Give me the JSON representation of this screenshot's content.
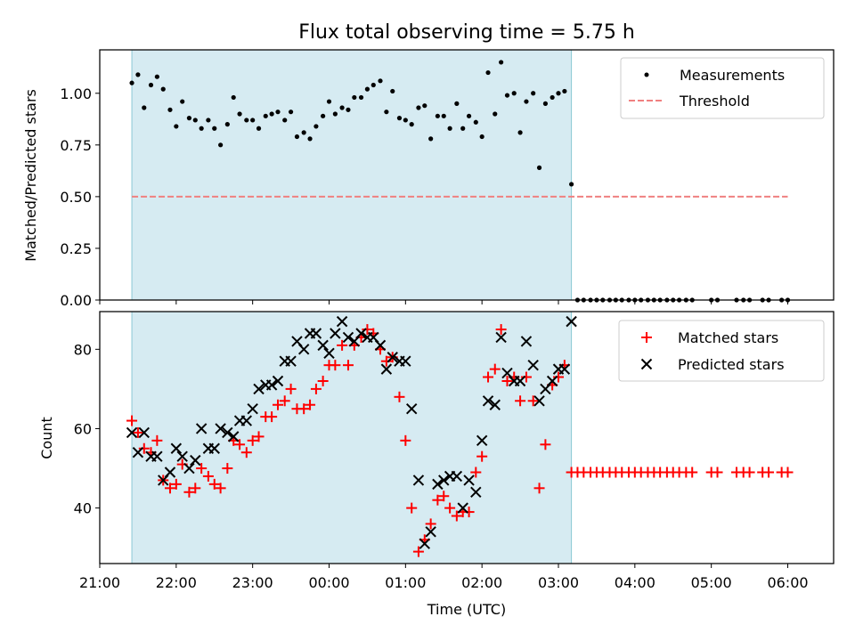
{
  "chart_data": [
    {
      "type": "scatter",
      "title": "Flux total observing time = 5.75 h",
      "ylabel": "Matched/Predicted stars",
      "xlabel": "",
      "xlim_hours": [
        21.0,
        30.6
      ],
      "ylim": [
        0,
        1.21
      ],
      "yticks": [
        0.0,
        0.25,
        0.5,
        0.75,
        1.0
      ],
      "ytick_labels": [
        "0.00",
        "0.25",
        "0.50",
        "0.75",
        "1.00"
      ],
      "shaded_span_hours": [
        21.42,
        27.17
      ],
      "threshold": {
        "name": "Threshold",
        "value": 0.5,
        "x_range_hours": [
          21.42,
          30.0
        ],
        "color": "#f08080"
      },
      "legend": [
        {
          "label": "Measurements",
          "marker": "dot"
        },
        {
          "label": "Threshold",
          "marker": "dashed-line"
        }
      ],
      "series": [
        {
          "name": "Measurements",
          "color": "#000000",
          "x_hours": [
            21.42,
            21.5,
            21.58,
            21.67,
            21.75,
            21.83,
            21.92,
            22.0,
            22.08,
            22.17,
            22.25,
            22.33,
            22.42,
            22.5,
            22.58,
            22.67,
            22.75,
            22.83,
            22.92,
            23.0,
            23.08,
            23.17,
            23.25,
            23.33,
            23.42,
            23.5,
            23.58,
            23.67,
            23.75,
            23.83,
            23.92,
            24.0,
            24.08,
            24.17,
            24.25,
            24.33,
            24.42,
            24.5,
            24.58,
            24.67,
            24.75,
            24.83,
            24.92,
            25.0,
            25.08,
            25.17,
            25.25,
            25.33,
            25.42,
            25.5,
            25.58,
            25.67,
            25.75,
            25.83,
            25.92,
            26.0,
            26.08,
            26.17,
            26.25,
            26.33,
            26.42,
            26.5,
            26.58,
            26.67,
            26.75,
            26.83,
            26.92,
            27.0,
            27.08,
            27.17,
            27.25,
            27.33,
            27.42,
            27.5,
            27.58,
            27.67,
            27.75,
            27.83,
            27.92,
            28.0,
            28.08,
            28.17,
            28.25,
            28.33,
            28.42,
            28.5,
            28.58,
            28.67,
            28.75,
            29.0,
            29.08,
            29.33,
            29.42,
            29.5,
            29.67,
            29.75,
            29.92,
            30.0
          ],
          "values": [
            1.05,
            1.09,
            0.93,
            1.04,
            1.08,
            1.02,
            0.92,
            0.84,
            0.96,
            0.88,
            0.87,
            0.83,
            0.87,
            0.83,
            0.75,
            0.85,
            0.98,
            0.9,
            0.87,
            0.87,
            0.83,
            0.89,
            0.9,
            0.91,
            0.87,
            0.91,
            0.79,
            0.81,
            0.78,
            0.84,
            0.89,
            0.96,
            0.9,
            0.93,
            0.92,
            0.98,
            0.98,
            1.02,
            1.04,
            1.06,
            0.91,
            1.01,
            0.88,
            0.87,
            0.85,
            0.93,
            0.94,
            0.78,
            0.89,
            0.89,
            0.83,
            0.95,
            0.83,
            0.89,
            0.86,
            0.79,
            1.1,
            0.9,
            1.15,
            0.99,
            1.0,
            0.81,
            0.96,
            1.0,
            0.64,
            0.95,
            0.98,
            1.0,
            1.01,
            0.56,
            0,
            0,
            0,
            0,
            0,
            0,
            0,
            0,
            0,
            0,
            0,
            0,
            0,
            0,
            0,
            0,
            0,
            0,
            0,
            0,
            0,
            0,
            0,
            0,
            0,
            0,
            0,
            0
          ]
        }
      ]
    },
    {
      "type": "scatter",
      "title": "",
      "xlabel": "Time (UTC)",
      "ylabel": "Count",
      "xlim_hours": [
        21.0,
        30.6
      ],
      "ylim": [
        26,
        89.5
      ],
      "yticks": [
        40,
        60,
        80
      ],
      "ytick_labels": [
        "40",
        "60",
        "80"
      ],
      "xticks_hours": [
        21,
        22,
        23,
        24,
        25,
        26,
        27,
        28,
        29,
        30
      ],
      "xtick_labels": [
        "21:00",
        "22:00",
        "23:00",
        "00:00",
        "01:00",
        "02:00",
        "03:00",
        "04:00",
        "05:00",
        "06:00"
      ],
      "shaded_span_hours": [
        21.42,
        27.17
      ],
      "legend": [
        {
          "label": "Matched stars",
          "marker": "plus"
        },
        {
          "label": "Predicted stars",
          "marker": "x"
        }
      ],
      "series": [
        {
          "name": "Matched stars",
          "color": "#ff0000",
          "x_hours": [
            21.42,
            21.5,
            21.58,
            21.67,
            21.75,
            21.83,
            21.92,
            22.0,
            22.08,
            22.17,
            22.25,
            22.33,
            22.42,
            22.5,
            22.58,
            22.67,
            22.75,
            22.83,
            22.92,
            23.0,
            23.08,
            23.17,
            23.25,
            23.33,
            23.42,
            23.5,
            23.58,
            23.67,
            23.75,
            23.83,
            23.92,
            24.0,
            24.08,
            24.17,
            24.25,
            24.33,
            24.42,
            24.5,
            24.58,
            24.67,
            24.75,
            24.83,
            24.92,
            25.0,
            25.08,
            25.17,
            25.25,
            25.33,
            25.42,
            25.5,
            25.58,
            25.67,
            25.75,
            25.83,
            25.92,
            26.0,
            26.08,
            26.17,
            26.25,
            26.33,
            26.42,
            26.5,
            26.58,
            26.67,
            26.75,
            26.83,
            26.92,
            27.0,
            27.08,
            27.17,
            27.25,
            27.33,
            27.42,
            27.5,
            27.58,
            27.67,
            27.75,
            27.83,
            27.92,
            28.0,
            28.08,
            28.17,
            28.25,
            28.33,
            28.42,
            28.5,
            28.58,
            28.67,
            28.75,
            29.0,
            29.08,
            29.33,
            29.42,
            29.5,
            29.67,
            29.75,
            29.92,
            30.0
          ],
          "values": [
            62,
            59,
            55,
            54,
            57,
            47,
            45,
            46,
            51,
            44,
            45,
            50,
            48,
            46,
            45,
            50,
            57,
            56,
            54,
            57,
            58,
            63,
            63,
            66,
            67,
            70,
            65,
            65,
            66,
            70,
            72,
            76,
            76,
            81,
            76,
            81,
            83,
            85,
            84,
            80,
            77,
            78,
            68,
            57,
            40,
            29,
            32,
            36,
            42,
            43,
            40,
            38,
            39,
            39,
            49,
            53,
            73,
            75,
            85,
            72,
            73,
            67,
            73,
            67,
            45,
            56,
            71,
            73,
            76,
            49,
            49,
            49,
            49,
            49,
            49,
            49,
            49,
            49,
            49,
            49,
            49,
            49,
            49,
            49,
            49,
            49,
            49,
            49,
            49,
            49,
            49,
            49,
            49,
            49,
            49,
            49,
            49,
            49
          ]
        },
        {
          "name": "Predicted stars",
          "color": "#000000",
          "x_hours": [
            21.42,
            21.5,
            21.58,
            21.67,
            21.75,
            21.83,
            21.92,
            22.0,
            22.08,
            22.17,
            22.25,
            22.33,
            22.42,
            22.5,
            22.58,
            22.67,
            22.75,
            22.83,
            22.92,
            23.0,
            23.08,
            23.17,
            23.25,
            23.33,
            23.42,
            23.5,
            23.58,
            23.67,
            23.75,
            23.83,
            23.92,
            24.0,
            24.08,
            24.17,
            24.25,
            24.33,
            24.42,
            24.5,
            24.58,
            24.67,
            24.75,
            24.83,
            24.92,
            25.0,
            25.08,
            25.17,
            25.25,
            25.33,
            25.42,
            25.5,
            25.58,
            25.67,
            25.75,
            25.83,
            25.92,
            26.0,
            26.08,
            26.17,
            26.25,
            26.33,
            26.42,
            26.5,
            26.58,
            26.67,
            26.75,
            26.83,
            26.92,
            27.0,
            27.08,
            27.17
          ],
          "values": [
            59,
            54,
            59,
            53,
            53,
            47,
            49,
            55,
            53,
            50,
            52,
            60,
            55,
            55,
            60,
            59,
            58,
            62,
            62,
            65,
            70,
            71,
            71,
            72,
            77,
            77,
            82,
            80,
            84,
            84,
            81,
            79,
            84,
            87,
            83,
            82,
            84,
            83,
            83,
            81,
            75,
            78,
            77,
            77,
            65,
            47,
            31,
            34,
            46,
            47,
            48,
            48,
            40,
            47,
            44,
            57,
            67,
            66,
            83,
            74,
            72,
            72,
            82,
            76,
            67,
            70,
            72,
            75,
            75,
            87
          ]
        }
      ]
    }
  ]
}
